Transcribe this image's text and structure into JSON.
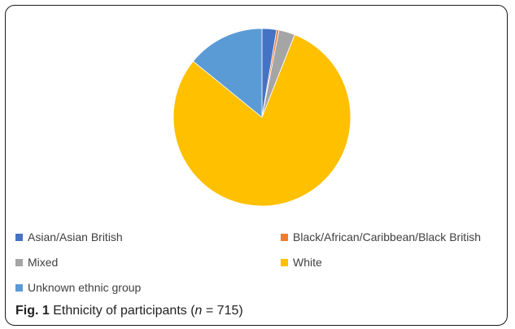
{
  "chart_data": {
    "type": "pie",
    "title": "",
    "categories": [
      "Asian/Asian British",
      "Black/African/Caribbean/Black British",
      "Mixed",
      "White",
      "Unknown ethnic group"
    ],
    "values": [
      19,
      3,
      21,
      571,
      101
    ],
    "colors": [
      "#4472C4",
      "#ED7D31",
      "#A5A5A5",
      "#FFC000",
      "#5B9BD5"
    ],
    "legend_position": "bottom"
  },
  "caption": {
    "label": "Fig. 1",
    "text": "Ethnicity of participants (",
    "n_symbol": "n",
    "n_value": " = 715)"
  }
}
